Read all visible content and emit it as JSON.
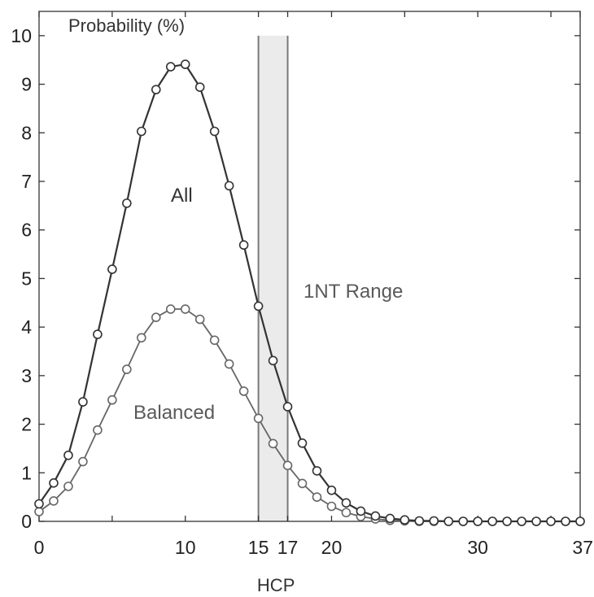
{
  "chart_data": {
    "type": "line",
    "title": "",
    "xlabel": "HCP",
    "ylabel": "Probability (%)",
    "xlim": [
      0,
      37
    ],
    "ylim": [
      0,
      10.5
    ],
    "x_ticks": [
      0,
      10,
      15,
      17,
      20,
      30,
      37
    ],
    "x_minor_ticks": [
      5,
      25,
      35
    ],
    "y_ticks": [
      0,
      1,
      2,
      3,
      4,
      5,
      6,
      7,
      8,
      9,
      10
    ],
    "grid": false,
    "x": [
      0,
      1,
      2,
      3,
      4,
      5,
      6,
      7,
      8,
      9,
      10,
      11,
      12,
      13,
      14,
      15,
      16,
      17,
      18,
      19,
      20,
      21,
      22,
      23,
      24,
      25,
      26,
      27,
      28,
      29,
      30,
      31,
      32,
      33,
      34,
      35,
      36,
      37
    ],
    "series": [
      {
        "name": "All",
        "values": [
          0.36,
          0.79,
          1.36,
          2.46,
          3.85,
          5.19,
          6.55,
          8.03,
          8.89,
          9.36,
          9.41,
          8.94,
          8.03,
          6.91,
          5.69,
          4.43,
          3.31,
          2.36,
          1.61,
          1.04,
          0.64,
          0.38,
          0.21,
          0.11,
          0.06,
          0.03,
          0.01,
          0.01,
          0,
          0,
          0,
          0,
          0,
          0,
          0,
          0,
          0,
          0
        ]
      },
      {
        "name": "Balanced",
        "values": [
          0.2,
          0.42,
          0.72,
          1.23,
          1.88,
          2.5,
          3.13,
          3.78,
          4.2,
          4.37,
          4.37,
          4.16,
          3.73,
          3.24,
          2.68,
          2.12,
          1.6,
          1.15,
          0.78,
          0.5,
          0.31,
          0.18,
          0.1,
          0.05,
          0.02,
          0.01,
          0,
          0,
          0,
          0,
          0,
          0,
          0,
          0,
          0,
          0,
          0,
          0
        ]
      }
    ],
    "highlight_range": {
      "label": "1NT Range",
      "from": 15,
      "to": 17
    },
    "colors": {
      "all_line": "#333333",
      "balanced_line": "#666666",
      "band_fill": "#ebebeb",
      "band_edge": "#7a7a7a",
      "label_all": "#333333",
      "label_other": "#5a5a5a"
    }
  }
}
